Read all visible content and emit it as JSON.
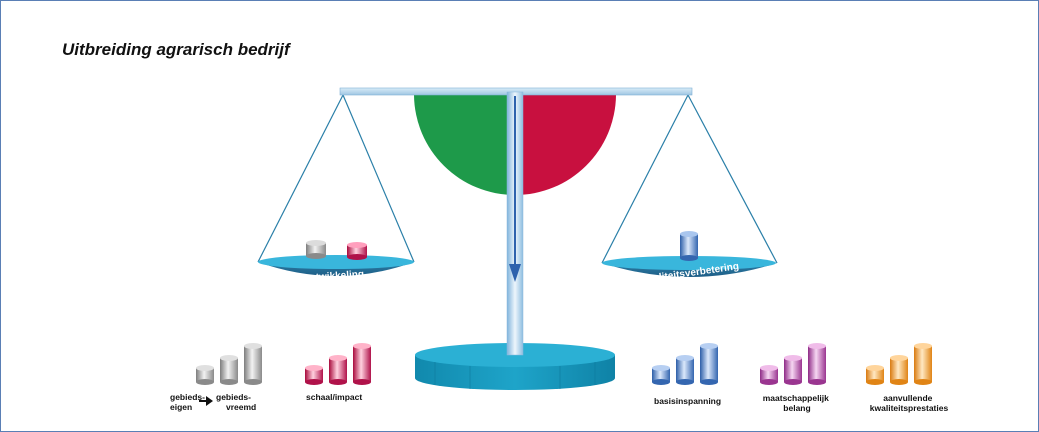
{
  "title": "Uitbreiding agrarisch bedrijf",
  "pans": {
    "left_label": "ontwikkeling",
    "right_label": "kwaliteitsverbetering"
  },
  "groups": [
    {
      "id": "gebieds",
      "label_left": [
        "gebieds-",
        "eigen"
      ],
      "label_right": [
        "gebieds-",
        "vreemd"
      ],
      "color": "gray"
    },
    {
      "id": "schaal",
      "label": [
        "schaal/impact"
      ],
      "color": "crimson"
    },
    {
      "id": "basis",
      "label": [
        "basisinspanning"
      ],
      "color": "blue"
    },
    {
      "id": "maatschappelijk",
      "label": [
        "maatschappelijk",
        "belang"
      ],
      "color": "purple"
    },
    {
      "id": "aanvullend",
      "label": [
        "aanvullende",
        "kwaliteitsprestaties"
      ],
      "color": "orange"
    }
  ],
  "colors": {
    "border": "#5a7fb5",
    "semicircle_left": "#1e9a4a",
    "semicircle_right": "#c8103f",
    "pan": "#2aa6cf",
    "base": "#1596ba",
    "beam": "#b9d9ec"
  }
}
